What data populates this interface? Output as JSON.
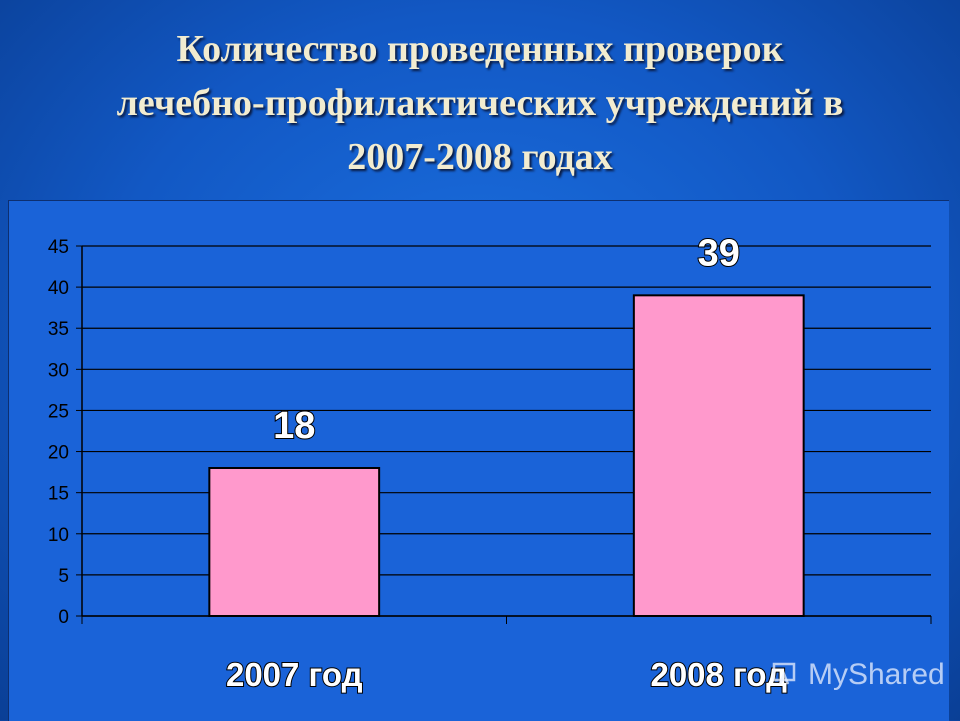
{
  "title": {
    "lines": [
      "Количество проведенных проверок",
      "лечебно-профилактических учреждений в",
      "2007-2008 годах"
    ]
  },
  "chart_data": {
    "type": "bar",
    "categories": [
      "2007 год",
      "2008 год"
    ],
    "values": [
      18,
      39
    ],
    "data_labels": [
      "18",
      "39"
    ],
    "ylim": [
      0,
      45
    ],
    "yticks": [
      0,
      5,
      10,
      15,
      20,
      25,
      30,
      35,
      40,
      45
    ],
    "grid": true,
    "legend": "none",
    "bar_color": "#ff99cc",
    "plot_background": "#1a63d8",
    "gridline_color": "#000000"
  },
  "watermark": {
    "text": "MyShared",
    "icon": "myshared-logo-icon"
  }
}
